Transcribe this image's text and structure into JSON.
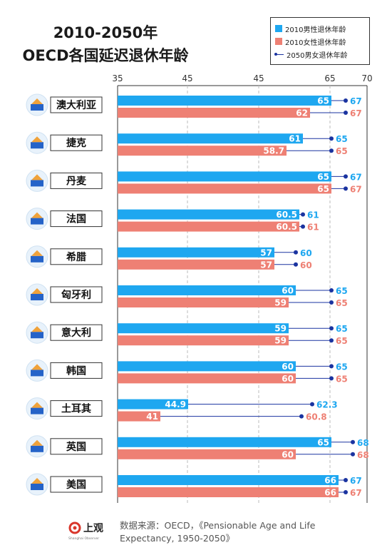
{
  "title_line1": "2010-2050年",
  "title_line2": "OECD各国延迟退休年龄",
  "legend": {
    "male_2010": "2010男性退休年龄",
    "female_2010": "2010女性退休年龄",
    "target_2050": "2050男女退休年龄"
  },
  "colors": {
    "male": "#1ea7f0",
    "female": "#ee8074",
    "target": "#1a33a0",
    "grid": "#bbbbbb"
  },
  "footer": {
    "logo_text": "上观",
    "logo_sub": "Shanghai Observer",
    "source_line1": "数据来源：OECD，《Pensionable Age and Life",
    "source_line2": "Expectancy, 1950-2050》"
  },
  "chart_data": {
    "type": "bar",
    "orientation": "horizontal",
    "axis_ticks": [
      "35",
      "45",
      "45",
      "65",
      "70"
    ],
    "xlim": [
      35,
      70
    ],
    "grid": true,
    "categories": [
      "澳大利亚",
      "捷克",
      "丹麦",
      "法国",
      "希腊",
      "匈牙利",
      "意大利",
      "韩国",
      "土耳其",
      "英国",
      "美国"
    ],
    "icons": [
      "sydney-opera-house-icon",
      "prague-church-icon",
      "little-mermaid-icon",
      "arc-de-triomphe-icon",
      "greek-columns-icon",
      "hungary-parliament-icon",
      "leaning-tower-icon",
      "korean-gate-icon",
      "hot-air-balloon-icon",
      "uk-parliament-icon",
      "golden-gate-bridge-icon"
    ],
    "series": [
      {
        "name": "2010男性退休年龄",
        "values": [
          65,
          61,
          65,
          60.5,
          57,
          60,
          59,
          60,
          44.9,
          65,
          66
        ],
        "labels": [
          "65",
          "61",
          "65",
          "60.5",
          "57",
          "60",
          "59",
          "60",
          "44.9",
          "65",
          "66"
        ]
      },
      {
        "name": "2010女性退休年龄",
        "values": [
          62,
          58.7,
          65,
          60.5,
          57,
          59,
          59,
          60,
          41,
          60,
          66
        ],
        "labels": [
          "62",
          "58.7",
          "65",
          "60.5",
          "57",
          "59",
          "59",
          "60",
          "41",
          "60",
          "66"
        ]
      },
      {
        "name": "2050男女退休年龄",
        "male_values": [
          67,
          65,
          67,
          61,
          60,
          65,
          65,
          65,
          62.3,
          68,
          67
        ],
        "female_values": [
          67,
          65,
          67,
          61,
          60,
          65,
          65,
          65,
          60.8,
          68,
          67
        ],
        "male_labels": [
          "67",
          "65",
          "67",
          "61",
          "60",
          "65",
          "65",
          "65",
          "62.3",
          "68",
          "67"
        ],
        "female_labels": [
          "67",
          "65",
          "67",
          "61",
          "60",
          "65",
          "65",
          "65",
          "60.8",
          "68",
          "67"
        ]
      }
    ]
  }
}
